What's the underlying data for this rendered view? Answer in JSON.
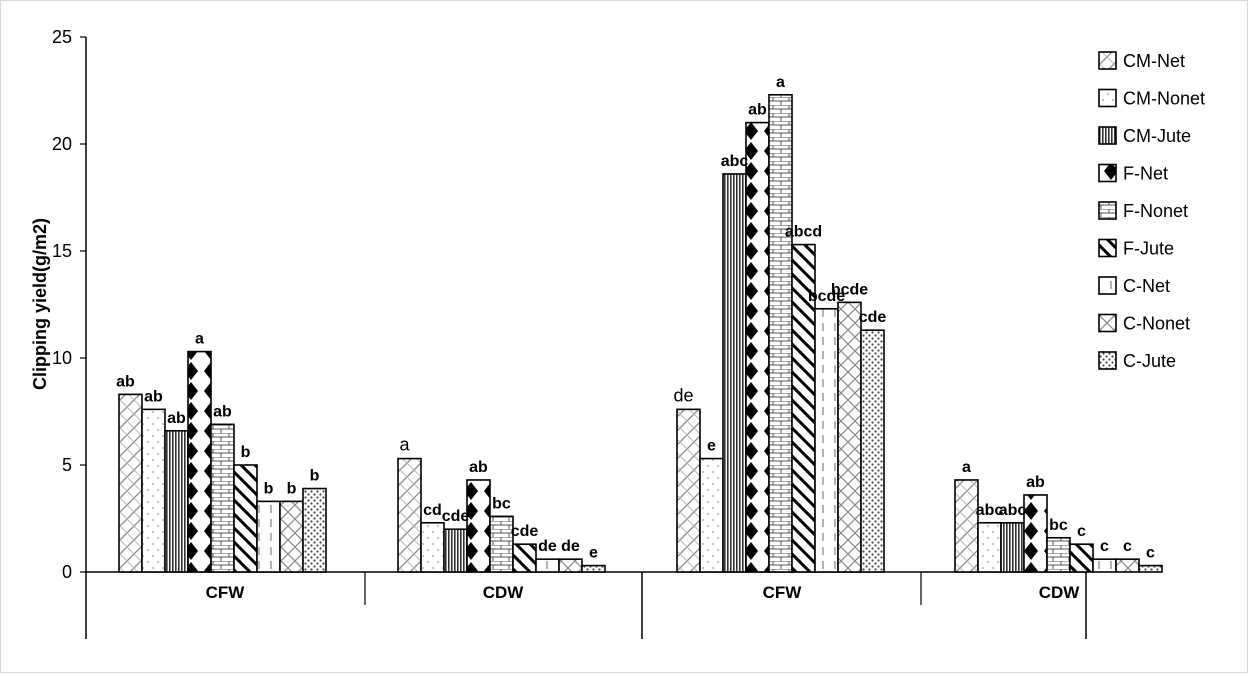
{
  "chart_data": {
    "type": "bar",
    "ylabel": "Clipping yield(g/m2)",
    "xlabel": "",
    "ylim": [
      0,
      25
    ],
    "yticks": [
      0,
      5,
      10,
      15,
      20,
      25
    ],
    "grid": false,
    "legend_position": "right",
    "categories": [
      "CFW",
      "CDW",
      "CFW",
      "CDW"
    ],
    "series": [
      {
        "name": "CM-Net",
        "pattern": "diag-hatch",
        "values": [
          8.3,
          5.3,
          7.6,
          4.3
        ],
        "labels": [
          "ab",
          "a",
          "de",
          "a"
        ]
      },
      {
        "name": "CM-Nonet",
        "pattern": "dots-sparse",
        "values": [
          7.6,
          2.3,
          5.3,
          2.3
        ],
        "labels": [
          "ab",
          "cd",
          "e",
          "abc"
        ]
      },
      {
        "name": "CM-Jute",
        "pattern": "vert-dense",
        "values": [
          6.6,
          2.0,
          18.6,
          2.3
        ],
        "labels": [
          "ab",
          "cde",
          "abc",
          "abc"
        ]
      },
      {
        "name": "F-Net",
        "pattern": "diamonds",
        "values": [
          10.3,
          4.3,
          21.0,
          3.6
        ],
        "labels": [
          "a",
          "ab",
          "ab",
          "ab"
        ]
      },
      {
        "name": "F-Nonet",
        "pattern": "bricks",
        "values": [
          6.9,
          2.6,
          22.3,
          1.6
        ],
        "labels": [
          "ab",
          "bc",
          "a",
          "bc"
        ]
      },
      {
        "name": "F-Jute",
        "pattern": "diag-bold",
        "values": [
          5.0,
          1.3,
          15.3,
          1.3
        ],
        "labels": [
          "b",
          "cde",
          "abcd",
          "c"
        ]
      },
      {
        "name": "C-Net",
        "pattern": "dash-vert",
        "values": [
          3.3,
          0.6,
          12.3,
          0.6
        ],
        "labels": [
          "b",
          "de",
          "bcde",
          "c"
        ]
      },
      {
        "name": "C-Nonet",
        "pattern": "cross-hatch",
        "values": [
          3.3,
          0.6,
          12.6,
          0.6
        ],
        "labels": [
          "b",
          "de",
          "bcde",
          "c"
        ]
      },
      {
        "name": "C-Jute",
        "pattern": "dots-dense",
        "values": [
          3.9,
          0.3,
          11.3,
          0.3
        ],
        "labels": [
          "b",
          "e",
          "cde",
          "c"
        ]
      }
    ]
  }
}
